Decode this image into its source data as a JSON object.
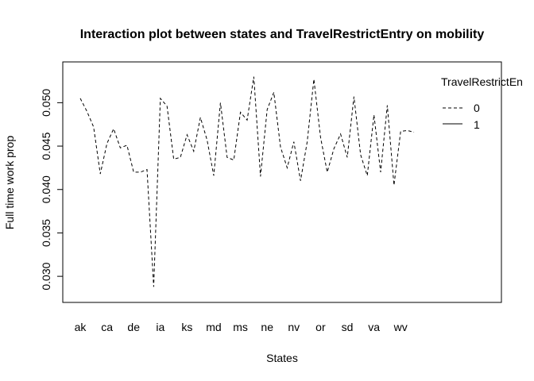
{
  "chart_data": {
    "type": "line",
    "title": "Interaction plot between states and TravelRestrictEntry on mobility",
    "xlabel": "States",
    "ylabel": "Full time work prop",
    "ylim": [
      0.028,
      0.0536
    ],
    "y_ticks": [
      "0.030",
      "0.035",
      "0.040",
      "0.045",
      "0.050"
    ],
    "y_tick_values": [
      0.03,
      0.035,
      0.04,
      0.045,
      0.05
    ],
    "x_tick_labels": [
      "ak",
      "ca",
      "de",
      "ia",
      "ks",
      "md",
      "ms",
      "ne",
      "nv",
      "or",
      "sd",
      "va",
      "wv"
    ],
    "x_tick_positions": [
      1,
      5,
      9,
      13,
      17,
      21,
      25,
      29,
      33,
      37,
      41,
      45,
      49
    ],
    "xlim": [
      1,
      51
    ],
    "grid": false,
    "legend": {
      "title": "TravelRestrictEn",
      "placement": "top-right",
      "entries": [
        "0",
        "1"
      ]
    },
    "series": [
      {
        "name": "0",
        "line_style": "dashed",
        "x": [
          1,
          2,
          3,
          4,
          5,
          6,
          7,
          8,
          9,
          10,
          11,
          12,
          13,
          14,
          15,
          16,
          17,
          18,
          19,
          20,
          21,
          22,
          23,
          24,
          25,
          26,
          27,
          28,
          29,
          30,
          31,
          32,
          33,
          34,
          35,
          36,
          37,
          38,
          39,
          40,
          41,
          42,
          43,
          44,
          45,
          46,
          47,
          48,
          49,
          50,
          51
        ],
        "values": [
          0.0505,
          0.049,
          0.0472,
          0.0418,
          0.0453,
          0.047,
          0.0448,
          0.0451,
          0.042,
          0.042,
          0.0423,
          0.0288,
          0.0505,
          0.0496,
          0.0435,
          0.0437,
          0.0463,
          0.0444,
          0.0483,
          0.0457,
          0.0416,
          0.05,
          0.0437,
          0.0434,
          0.0489,
          0.048,
          0.053,
          0.0415,
          0.0492,
          0.0512,
          0.0449,
          0.0425,
          0.0455,
          0.041,
          0.0455,
          0.0527,
          0.046,
          0.042,
          0.0447,
          0.0464,
          0.0437,
          0.0507,
          0.044,
          0.0416,
          0.0486,
          0.042,
          0.0497,
          0.0405,
          0.0467,
          0.0468,
          0.0466
        ]
      },
      {
        "name": "1",
        "line_style": "solid",
        "x": [],
        "values": []
      }
    ]
  }
}
